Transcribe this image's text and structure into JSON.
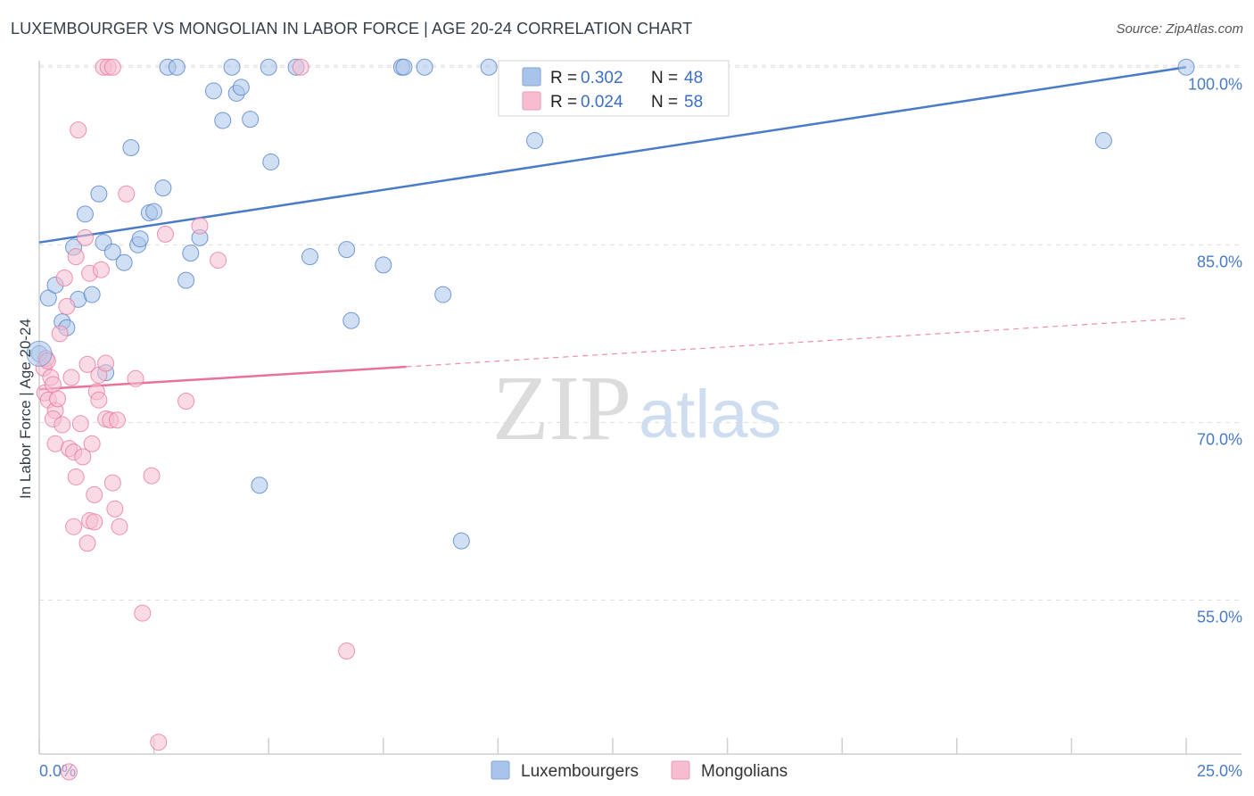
{
  "header": {
    "title": "LUXEMBOURGER VS MONGOLIAN IN LABOR FORCE | AGE 20-24 CORRELATION CHART",
    "source": "Source: ZipAtlas.com"
  },
  "watermark": {
    "zip": "ZIP",
    "atlas": "atlas"
  },
  "legend": {
    "rows": [
      {
        "r_label": "R =",
        "r_value": "0.302",
        "n_label": "N =",
        "n_value": "48"
      },
      {
        "r_label": "R =",
        "r_value": "0.024",
        "n_label": "N =",
        "n_value": "58"
      }
    ]
  },
  "chart_data": {
    "type": "scatter",
    "title": "LUXEMBOURGER VS MONGOLIAN IN LABOR FORCE | AGE 20-24 CORRELATION CHART",
    "ylabel": "In Labor Force | Age 20-24",
    "xlim": [
      0,
      25
    ],
    "ylim": [
      42,
      101
    ],
    "x_tick_labels": [
      "0.0%",
      "25.0%"
    ],
    "y_ticks": [
      55,
      70,
      85,
      100
    ],
    "y_tick_labels": [
      "55.0%",
      "70.0%",
      "85.0%",
      "100.0%"
    ],
    "grid": true,
    "legend_position": "bottom",
    "series": [
      {
        "name": "Luxembourgers",
        "color": "#4a7bc8",
        "fill": "#a9c4ea",
        "r": 0.302,
        "n": 48,
        "trend": {
          "x": [
            0,
            25
          ],
          "y": [
            85.2,
            100.0
          ]
        },
        "points": [
          [
            0.0,
            75.8
          ],
          [
            0.2,
            80.5
          ],
          [
            0.35,
            81.6
          ],
          [
            0.5,
            78.5
          ],
          [
            0.6,
            78.0
          ],
          [
            0.75,
            84.8
          ],
          [
            0.85,
            80.4
          ],
          [
            1.0,
            87.6
          ],
          [
            1.15,
            80.8
          ],
          [
            1.3,
            89.3
          ],
          [
            1.4,
            85.2
          ],
          [
            1.45,
            74.2
          ],
          [
            1.6,
            84.4
          ],
          [
            1.85,
            83.5
          ],
          [
            2.0,
            93.2
          ],
          [
            2.15,
            85.0
          ],
          [
            2.2,
            85.5
          ],
          [
            2.4,
            87.7
          ],
          [
            2.5,
            87.8
          ],
          [
            2.7,
            89.8
          ],
          [
            2.8,
            100.0
          ],
          [
            3.0,
            100.0
          ],
          [
            3.2,
            82.0
          ],
          [
            3.3,
            84.3
          ],
          [
            3.5,
            85.6
          ],
          [
            3.8,
            98.0
          ],
          [
            4.0,
            95.5
          ],
          [
            4.2,
            100.0
          ],
          [
            4.3,
            97.8
          ],
          [
            4.4,
            98.3
          ],
          [
            4.6,
            95.6
          ],
          [
            4.8,
            64.7
          ],
          [
            5.0,
            100.0
          ],
          [
            5.05,
            92.0
          ],
          [
            5.6,
            100.0
          ],
          [
            5.9,
            84.0
          ],
          [
            6.7,
            84.6
          ],
          [
            6.8,
            78.6
          ],
          [
            7.5,
            83.3
          ],
          [
            7.9,
            100.0
          ],
          [
            7.95,
            100.0
          ],
          [
            8.4,
            100.0
          ],
          [
            8.8,
            80.8
          ],
          [
            9.2,
            60.0
          ],
          [
            9.8,
            100.0
          ],
          [
            10.8,
            93.8
          ],
          [
            23.2,
            93.8
          ],
          [
            25.0,
            100.0
          ]
        ]
      },
      {
        "name": "Mongolians",
        "color": "#e8729a",
        "fill": "#f6bdd0",
        "r": 0.024,
        "n": 58,
        "trend": {
          "x": [
            0,
            8.0
          ],
          "y": [
            72.8,
            74.7
          ]
        },
        "trend_extension": {
          "x": [
            8.0,
            25.0
          ],
          "y": [
            74.7,
            78.8
          ]
        },
        "points": [
          [
            0.1,
            74.6
          ],
          [
            0.12,
            72.5
          ],
          [
            0.15,
            75.4
          ],
          [
            0.2,
            71.9
          ],
          [
            0.25,
            73.8
          ],
          [
            0.3,
            73.2
          ],
          [
            0.35,
            71.0
          ],
          [
            0.3,
            70.3
          ],
          [
            0.35,
            68.2
          ],
          [
            0.4,
            72.0
          ],
          [
            0.45,
            77.5
          ],
          [
            0.5,
            69.8
          ],
          [
            0.55,
            82.2
          ],
          [
            0.6,
            79.8
          ],
          [
            0.65,
            67.8
          ],
          [
            0.65,
            40.5
          ],
          [
            0.7,
            73.8
          ],
          [
            0.75,
            67.5
          ],
          [
            0.75,
            61.2
          ],
          [
            0.8,
            65.4
          ],
          [
            0.8,
            84.0
          ],
          [
            0.85,
            94.7
          ],
          [
            0.9,
            69.9
          ],
          [
            0.95,
            67.1
          ],
          [
            1.0,
            85.6
          ],
          [
            1.05,
            74.9
          ],
          [
            1.05,
            59.8
          ],
          [
            1.1,
            82.6
          ],
          [
            1.1,
            61.7
          ],
          [
            1.15,
            68.2
          ],
          [
            1.2,
            63.9
          ],
          [
            1.2,
            61.6
          ],
          [
            1.25,
            72.6
          ],
          [
            1.3,
            71.9
          ],
          [
            1.3,
            74.0
          ],
          [
            1.35,
            82.9
          ],
          [
            1.4,
            100.0
          ],
          [
            1.45,
            75.0
          ],
          [
            1.45,
            70.3
          ],
          [
            1.5,
            100.0
          ],
          [
            1.6,
            100.0
          ],
          [
            1.55,
            70.2
          ],
          [
            1.6,
            64.9
          ],
          [
            1.65,
            62.7
          ],
          [
            1.7,
            70.2
          ],
          [
            1.75,
            61.2
          ],
          [
            1.9,
            89.3
          ],
          [
            2.1,
            73.7
          ],
          [
            2.25,
            53.9
          ],
          [
            2.45,
            65.5
          ],
          [
            2.6,
            43.0
          ],
          [
            2.75,
            85.9
          ],
          [
            3.2,
            71.8
          ],
          [
            3.5,
            86.6
          ],
          [
            3.9,
            83.7
          ],
          [
            5.7,
            100.0
          ],
          [
            6.7,
            50.7
          ],
          [
            0.18,
            75.2
          ]
        ]
      }
    ]
  }
}
